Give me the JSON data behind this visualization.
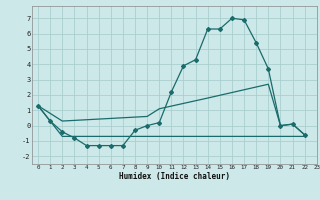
{
  "xlabel": "Humidex (Indice chaleur)",
  "background_color": "#cce8e8",
  "grid_color": "#aacece",
  "line_color": "#1a6b6b",
  "xlim": [
    -0.5,
    23
  ],
  "ylim": [
    -2.5,
    7.8
  ],
  "yticks": [
    -2,
    -1,
    0,
    1,
    2,
    3,
    4,
    5,
    6,
    7
  ],
  "xticks": [
    0,
    1,
    2,
    3,
    4,
    5,
    6,
    7,
    8,
    9,
    10,
    11,
    12,
    13,
    14,
    15,
    16,
    17,
    18,
    19,
    20,
    21,
    22,
    23
  ],
  "line1_x": [
    0,
    1,
    2,
    3,
    4,
    5,
    6,
    7,
    8,
    9,
    10,
    11,
    12,
    13,
    14,
    15,
    16,
    17,
    18,
    19,
    20,
    21,
    22
  ],
  "line1_y": [
    1.3,
    0.3,
    -0.4,
    -0.8,
    -1.3,
    -1.3,
    -1.3,
    -1.3,
    -0.3,
    0.0,
    0.2,
    2.2,
    3.9,
    4.3,
    6.3,
    6.3,
    7.0,
    6.9,
    5.4,
    3.7,
    0.0,
    0.1,
    -0.6
  ],
  "line2_x": [
    0,
    2,
    9,
    10,
    14,
    19,
    20,
    21,
    22
  ],
  "line2_y": [
    1.3,
    0.3,
    0.6,
    1.1,
    1.8,
    2.7,
    0.0,
    0.1,
    -0.6
  ],
  "line3_x": [
    0,
    2,
    9,
    22
  ],
  "line3_y": [
    1.3,
    -0.7,
    -0.7,
    -0.7
  ]
}
